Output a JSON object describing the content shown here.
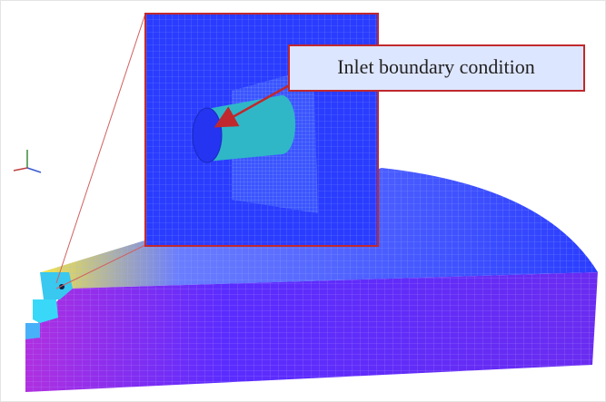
{
  "annotation": {
    "label": "Inlet boundary condition"
  }
}
